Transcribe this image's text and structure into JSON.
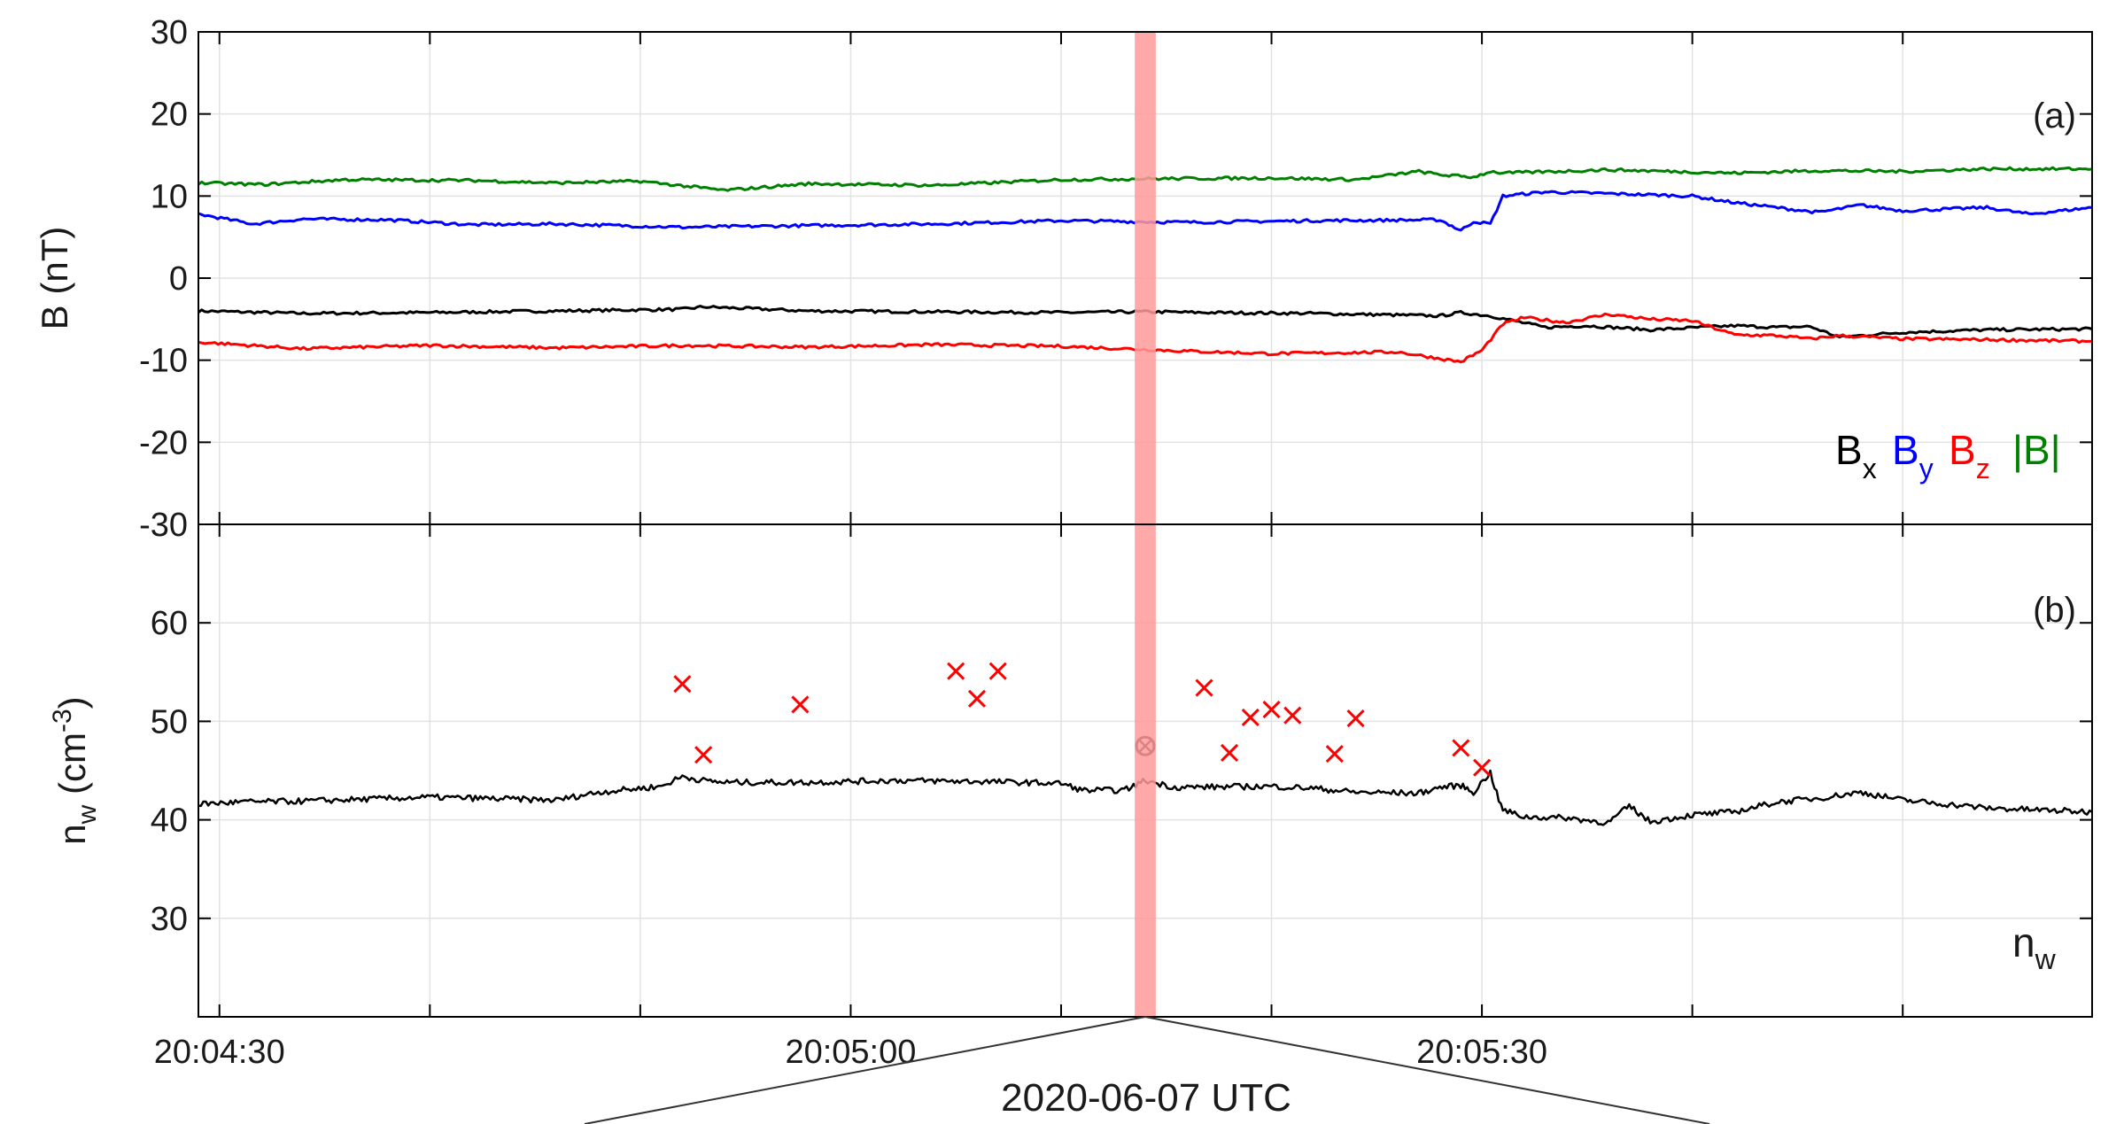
{
  "chart_data": [
    {
      "panel": "(a)",
      "type": "line",
      "ylabel": "B (nT)",
      "ylim": [
        -30,
        30
      ],
      "yticks": [
        30,
        20,
        10,
        0,
        -10,
        -20,
        -30
      ],
      "grid": true,
      "x_unit": "seconds after 20:04:30 UTC",
      "xlim": [
        -0.5,
        44.5
      ],
      "series": [
        {
          "name": "x",
          "symbol": "B",
          "color": "#000000",
          "x": [
            -0.5,
            2,
            5,
            8,
            11,
            11.5,
            14,
            17,
            20,
            22,
            23.5,
            26,
            29,
            29.5,
            30.2,
            31.5,
            32.5,
            34,
            36,
            37,
            37.8,
            38.5,
            40,
            42,
            44.5
          ],
          "y": [
            -4,
            -4.3,
            -4.2,
            -4.0,
            -3.8,
            -3.5,
            -4.0,
            -4.1,
            -4.2,
            -4.1,
            -4.2,
            -4.3,
            -4.6,
            -4.2,
            -4.6,
            -6.0,
            -5.8,
            -6.3,
            -5.8,
            -6.0,
            -5.9,
            -7.2,
            -6.6,
            -6.3,
            -6.2
          ]
        },
        {
          "name": "y",
          "symbol": "B",
          "color": "#0000ff",
          "x": [
            -0.5,
            0.8,
            2,
            4,
            6,
            8,
            11,
            14,
            17,
            20,
            23,
            26,
            29,
            29.5,
            29.8,
            30.2,
            30.5,
            31.5,
            33,
            35,
            36,
            38,
            39,
            40,
            42,
            43,
            44.5
          ],
          "y": [
            7.8,
            6.6,
            7.2,
            7.1,
            6.5,
            6.6,
            6.2,
            6.4,
            6.6,
            7.0,
            6.8,
            7.0,
            7.1,
            5.8,
            6.9,
            6.6,
            10.0,
            10.5,
            10.3,
            10.0,
            9.2,
            8.0,
            8.9,
            8.2,
            8.6,
            7.8,
            8.6
          ]
        },
        {
          "name": "z",
          "symbol": "B",
          "color": "#ff0000",
          "x": [
            -0.5,
            2,
            5,
            8,
            11,
            14,
            17,
            20,
            23,
            25,
            28,
            29.5,
            30,
            30.5,
            31,
            32,
            33,
            34,
            35,
            36,
            37,
            37.8,
            38.5,
            40,
            42,
            44.5
          ],
          "y": [
            -7.8,
            -8.6,
            -8.2,
            -8.5,
            -8.2,
            -8.4,
            -8.1,
            -8.3,
            -8.9,
            -9.2,
            -9.0,
            -10.2,
            -8.8,
            -5.6,
            -4.8,
            -5.4,
            -4.4,
            -5.0,
            -5.2,
            -6.9,
            -7.0,
            -7.4,
            -7.0,
            -7.4,
            -7.5,
            -7.7
          ]
        },
        {
          "name": "|B|",
          "symbol": "",
          "color": "#008000",
          "x": [
            -0.5,
            1,
            3,
            6,
            8,
            10,
            12,
            14,
            17,
            20,
            22,
            25,
            27,
            28.5,
            29,
            29.8,
            30.2,
            30.5,
            33,
            36,
            38,
            40,
            42,
            44.5
          ],
          "y": [
            11.6,
            11.4,
            12.0,
            11.9,
            11.6,
            11.8,
            10.7,
            11.5,
            11.3,
            12.0,
            12.1,
            12.2,
            12.0,
            13.0,
            12.6,
            12.3,
            13.0,
            12.8,
            13.2,
            12.8,
            13.1,
            13.0,
            13.3,
            13.3
          ]
        }
      ]
    },
    {
      "panel": "(b)",
      "type": "line",
      "ylabel": "n",
      "ylabel_sub": "w",
      "ylabel_unit": " (cm",
      "ylabel_sup": "-3",
      "ylabel_close": ")",
      "ylim": [
        20,
        70
      ],
      "yticks": [
        60,
        50,
        40,
        30
      ],
      "grid": true,
      "legend": "n",
      "legend_sub": "w",
      "line": {
        "color": "#000000",
        "x": [
          -0.5,
          0.5,
          2,
          5,
          8,
          9,
          10.5,
          11,
          11.5,
          12,
          14,
          16,
          18,
          20,
          20.5,
          21.5,
          22,
          22.7,
          25,
          26,
          27,
          28.5,
          29,
          29.5,
          29.8,
          30.2,
          30.4,
          30.5,
          31,
          32,
          33,
          33.5,
          34,
          35,
          36,
          37,
          38,
          39,
          40,
          42,
          44.5
        ],
        "y": [
          41.6,
          41.8,
          41.9,
          42.3,
          42.0,
          42.8,
          43.4,
          44.4,
          44.0,
          43.8,
          43.8,
          44.0,
          43.9,
          43.7,
          43.0,
          43.0,
          44.0,
          43.3,
          43.4,
          43.2,
          42.8,
          42.7,
          43.3,
          43.5,
          42.8,
          44.8,
          42.0,
          41.0,
          40.3,
          40.2,
          39.7,
          41.4,
          39.8,
          40.5,
          40.8,
          41.8,
          42.2,
          42.8,
          42.0,
          41.2,
          40.8
        ]
      },
      "markers_x": {
        "color": "#ff0000",
        "x": [
          11.0,
          11.5,
          13.8,
          17.5,
          18.0,
          18.5,
          23.4,
          24.0,
          24.5,
          25.0,
          25.5,
          26.5,
          27.0,
          29.5,
          30.0
        ],
        "y": [
          53.8,
          46.6,
          51.7,
          55.1,
          52.3,
          55.1,
          53.4,
          46.8,
          50.4,
          51.2,
          50.6,
          46.7,
          50.3,
          47.3,
          45.3
        ]
      },
      "marker_circled": {
        "x": 22.0,
        "y": 47.5,
        "color": "#000000"
      }
    }
  ],
  "x_axis": {
    "tick_labels": [
      "20:04:30",
      "20:05:00",
      "20:05:30"
    ],
    "tick_label_positions": [
      0,
      15,
      30
    ],
    "minor_tick_positions": [
      5,
      10,
      20,
      25,
      35,
      40
    ],
    "label": "2020-06-07 UTC"
  },
  "highlight_band": {
    "x_center": 22.0,
    "width_seconds": 0.5,
    "color": "#ff9a9a"
  }
}
